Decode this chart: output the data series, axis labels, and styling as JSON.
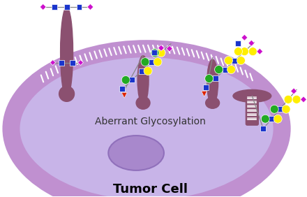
{
  "title": "Tumor Cell",
  "label": "Aberrant Glycosylation",
  "cell_color": "#c8b4e8",
  "cell_edge_color": "#b8a0d8",
  "membrane_color": "#c090d0",
  "receptor_color": "#8b5070",
  "background": "#ffffff",
  "blue_sq": "#1a35cc",
  "magenta_dia": "#cc10cc",
  "yellow_circ": "#ffee00",
  "green_circ": "#22aa22",
  "red_tri": "#dd2200",
  "line_color": "#888888"
}
